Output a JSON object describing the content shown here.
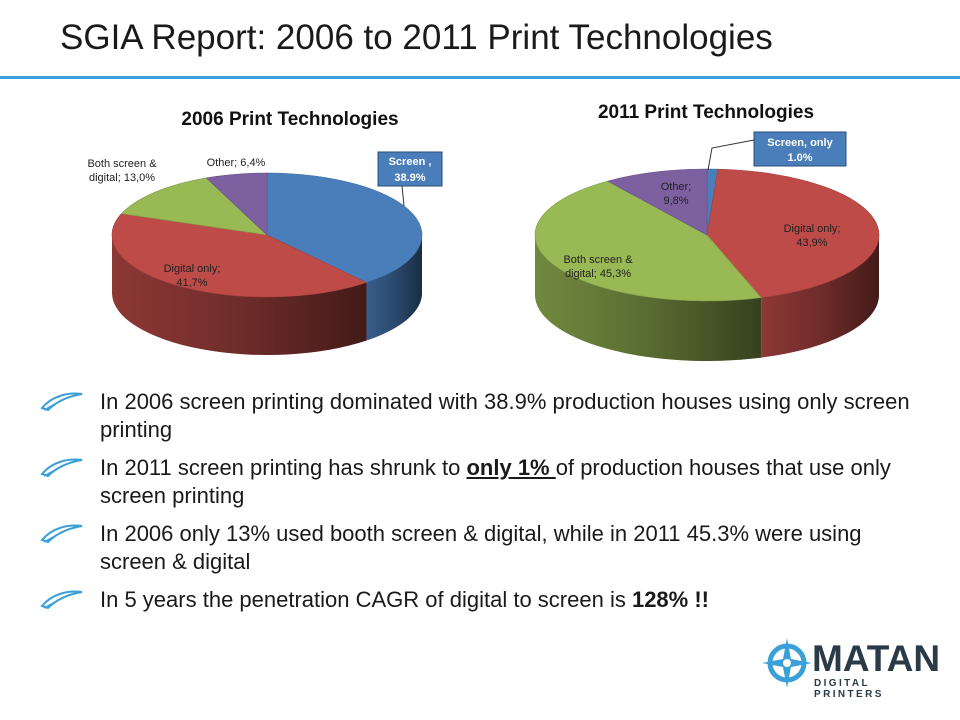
{
  "slide": {
    "title": "SGIA Report: 2006 to 2011 Print Technologies",
    "accent_color": "#3aa0d8"
  },
  "chart_data": [
    {
      "type": "pie",
      "title": "2006 Print Technologies",
      "slices": [
        {
          "label": "Screen , 38.9%",
          "name": "Screen",
          "value": 38.9,
          "color": "#4a7ebb"
        },
        {
          "label": "Digital only; 41,7%",
          "name": "Digital only",
          "value": 41.7,
          "color": "#be4b48"
        },
        {
          "label": "Both screen & digital; 13,0%",
          "name": "Both screen & digital",
          "value": 13.0,
          "color": "#98b954"
        },
        {
          "label": "Other; 6,4%",
          "name": "Other",
          "value": 6.4,
          "color": "#7d60a0"
        }
      ]
    },
    {
      "type": "pie",
      "title": "2011 Print Technologies",
      "slices": [
        {
          "label": "Screen, only 1.0%",
          "name": "Screen, only",
          "value": 1.0,
          "color": "#4a7ebb"
        },
        {
          "label": "Digital only; 43,9%",
          "name": "Digital only",
          "value": 43.9,
          "color": "#be4b48"
        },
        {
          "label": "Both screen & digital; 45,3%",
          "name": "Both screen & digital",
          "value": 45.3,
          "color": "#98b954"
        },
        {
          "label": "Other; 9,8%",
          "name": "Other",
          "value": 9.8,
          "color": "#7d60a0"
        }
      ]
    }
  ],
  "bullets": {
    "b1": "In 2006 screen printing dominated with 38.9% production houses using only screen printing",
    "b2_pre": "In 2011 screen printing has shrunk to ",
    "b2_em": "only 1% ",
    "b2_post": "of production houses that use only screen printing",
    "b3": "In 2006 only 13% used booth screen & digital, while in 2011 45.3% were using screen & digital",
    "b4_pre": "In 5 years the penetration CAGR of digital to screen is ",
    "b4_em": "128% !!"
  },
  "logo": {
    "name": "MATAN",
    "tagline": "DIGITAL PRINTERS",
    "color": "#2b3a47",
    "icon_color": "#3aa0d8"
  }
}
